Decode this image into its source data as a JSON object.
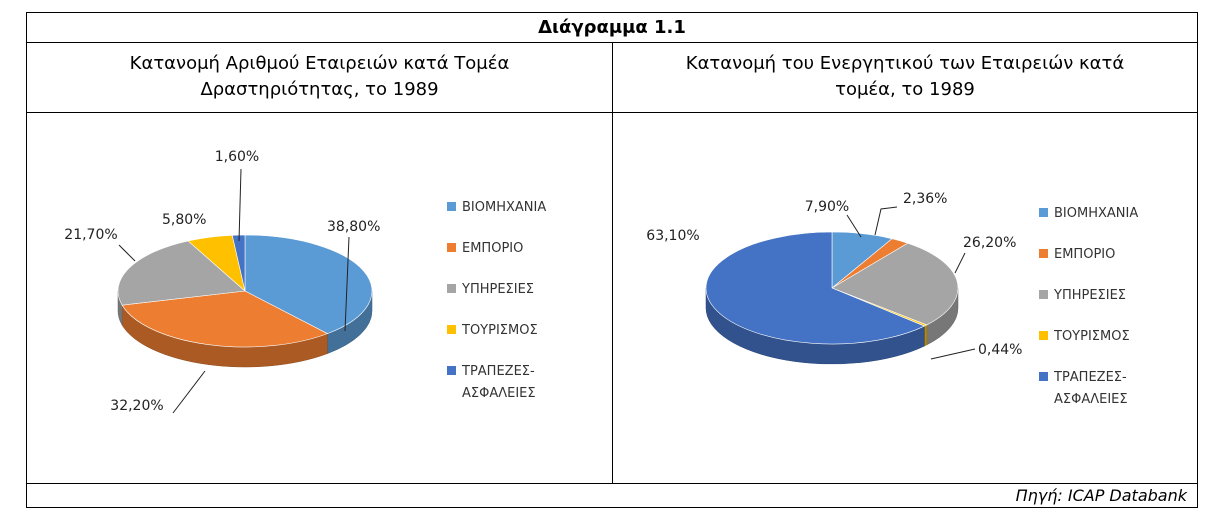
{
  "title": "Διάγραμμα 1.1",
  "source": "Πηγή: ICAP Databank",
  "chart_data": [
    {
      "type": "pie",
      "title_lines": [
        "Κατανομή Αριθμού Εταιρειών κατά Τομέα",
        "Δραστηριότητας, το 1989"
      ],
      "legend_placement": "right",
      "slices": [
        {
          "name": "ΒΙΟΜΗΧΑΝΙΑ",
          "value": 38.8,
          "label": "38,80%",
          "color": "#5B9BD5"
        },
        {
          "name": "ΕΜΠΟΡΙΟ",
          "value": 32.2,
          "label": "32,20%",
          "color": "#ED7D31"
        },
        {
          "name": "ΥΠΗΡΕΣΙΕΣ",
          "value": 21.7,
          "label": "21,70%",
          "color": "#A5A5A5"
        },
        {
          "name": "ΤΟΥΡΙΣΜΟΣ",
          "value": 5.8,
          "label": "5,80%",
          "color": "#FFC000"
        },
        {
          "name": "ΤΡΑΠΕΖΕΣ-ΑΣΦΑΛΕΙΕΣ",
          "value": 1.6,
          "label": "1,60%",
          "color": "#4472C4"
        }
      ],
      "legend": [
        {
          "lines": [
            "ΒΙΟΜΗΧΑΝΙΑ"
          ],
          "color": "#5B9BD5"
        },
        {
          "lines": [
            "ΕΜΠΟΡΙΟ"
          ],
          "color": "#ED7D31"
        },
        {
          "lines": [
            "ΥΠΗΡΕΣΙΕΣ"
          ],
          "color": "#A5A5A5"
        },
        {
          "lines": [
            "ΤΟΥΡΙΣΜΟΣ"
          ],
          "color": "#FFC000"
        },
        {
          "lines": [
            "ΤΡΑΠΕΖΕΣ-",
            "ΑΣΦΑΛΕΙΕΣ"
          ],
          "color": "#4472C4"
        }
      ]
    },
    {
      "type": "pie",
      "title_lines": [
        "Κατανομή του Ενεργητικού των Εταιρειών κατά",
        "τομέα, το 1989"
      ],
      "legend_placement": "right",
      "slices": [
        {
          "name": "ΒΙΟΜΗΧΑΝΙΑ",
          "value": 7.9,
          "label": "7,90%",
          "color": "#5B9BD5"
        },
        {
          "name": "ΕΜΠΟΡΙΟ",
          "value": 2.36,
          "label": "2,36%",
          "color": "#ED7D31"
        },
        {
          "name": "ΥΠΗΡΕΣΙΕΣ",
          "value": 26.2,
          "label": "26,20%",
          "color": "#A5A5A5"
        },
        {
          "name": "ΤΟΥΡΙΣΜΟΣ",
          "value": 0.44,
          "label": "0,44%",
          "color": "#FFC000"
        },
        {
          "name": "ΤΡΑΠΕΖΕΣ-ΑΣΦΑΛΕΙΕΣ",
          "value": 63.1,
          "label": "63,10%",
          "color": "#4472C4"
        }
      ],
      "legend": [
        {
          "lines": [
            "ΒΙΟΜΗΧΑΝΙΑ"
          ],
          "color": "#5B9BD5"
        },
        {
          "lines": [
            "ΕΜΠΟΡΙΟ"
          ],
          "color": "#ED7D31"
        },
        {
          "lines": [
            "ΥΠΗΡΕΣΙΕΣ"
          ],
          "color": "#A5A5A5"
        },
        {
          "lines": [
            "ΤΟΥΡΙΣΜΟΣ"
          ],
          "color": "#FFC000"
        },
        {
          "lines": [
            "ΤΡΑΠΕΖΕΣ-",
            "ΑΣΦΑΛΕΙΕΣ"
          ],
          "color": "#4472C4"
        }
      ]
    }
  ]
}
